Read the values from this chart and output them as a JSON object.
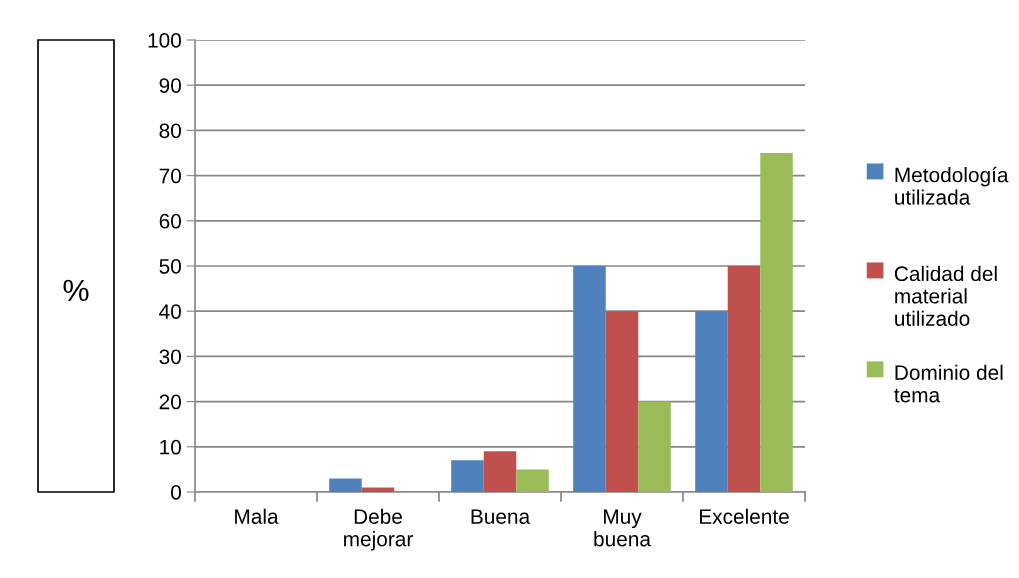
{
  "chart_data": {
    "type": "bar",
    "ylabel": "%",
    "categories": [
      "Mala",
      "Debe\nmejorar",
      "Buena",
      "Muy\nbuena",
      "Excelente"
    ],
    "series": [
      {
        "name": "Metodología\nutilizada",
        "color": "#4f81bd",
        "values": [
          0,
          3,
          7,
          50,
          40
        ]
      },
      {
        "name": "Calidad del\nmaterial\nutilizado",
        "color": "#c0504d",
        "values": [
          0,
          1,
          9,
          40,
          50
        ]
      },
      {
        "name": "Dominio del\ntema",
        "color": "#9bbb59",
        "values": [
          0,
          0,
          5,
          20,
          75
        ]
      }
    ],
    "ylim": [
      0,
      100
    ],
    "yticks": [
      0,
      10,
      20,
      30,
      40,
      50,
      60,
      70,
      80,
      90,
      100
    ],
    "grid": "y",
    "legend": "right"
  }
}
